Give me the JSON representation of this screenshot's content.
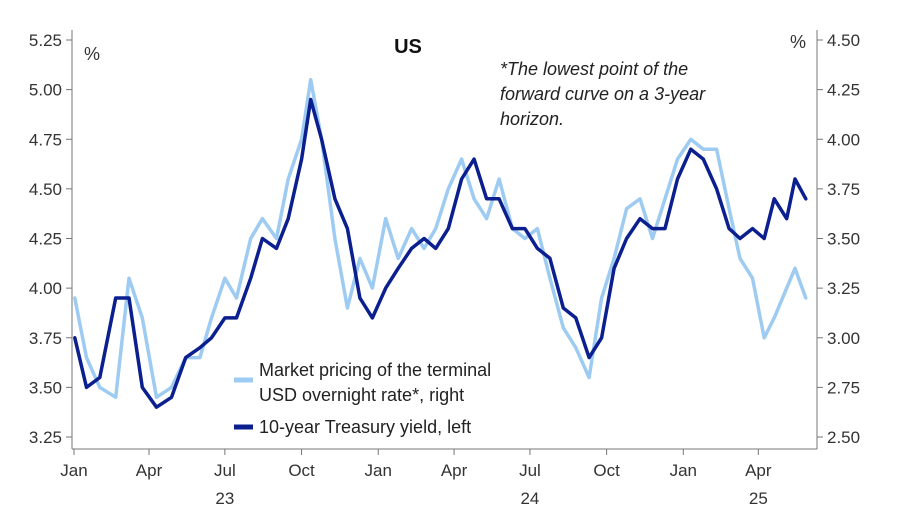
{
  "chart_data": {
    "type": "line",
    "title": "US",
    "annotation": [
      "*The lowest point of the",
      "forward curve on a 3-year",
      "horizon."
    ],
    "left_axis": {
      "unit": "%",
      "ylim": [
        3.2,
        5.3
      ],
      "ticks": [
        "3.25",
        "3.50",
        "3.75",
        "4.00",
        "4.25",
        "4.50",
        "4.75",
        "5.00",
        "5.25"
      ]
    },
    "right_axis": {
      "unit": "%",
      "ylim": [
        2.45,
        4.55
      ],
      "ticks": [
        "2.50",
        "2.75",
        "3.00",
        "3.25",
        "3.50",
        "3.75",
        "4.00",
        "4.25",
        "4.50"
      ]
    },
    "x_month_ticks": [
      "Jan",
      "Apr",
      "Jul",
      "Oct",
      "Jan",
      "Apr",
      "Jul",
      "Oct",
      "Jan",
      "Apr"
    ],
    "x_year_labels": [
      "23",
      "24",
      "25"
    ],
    "grid": false,
    "legend_position": "bottom-center",
    "series": [
      {
        "name": "Market pricing of the terminal USD overnight rate*, right",
        "legend_lines": [
          "Market pricing of the terminal",
          "USD overnight rate*, right"
        ],
        "axis": "right",
        "color": "#9ecbf2",
        "x": [
          "2023-01-02",
          "2023-01-16",
          "2023-02-01",
          "2023-02-20",
          "2023-03-08",
          "2023-03-24",
          "2023-04-10",
          "2023-04-28",
          "2023-05-15",
          "2023-06-01",
          "2023-06-15",
          "2023-07-01",
          "2023-07-15",
          "2023-08-01",
          "2023-08-15",
          "2023-09-01",
          "2023-09-15",
          "2023-10-01",
          "2023-10-12",
          "2023-10-25",
          "2023-11-10",
          "2023-11-25",
          "2023-12-10",
          "2023-12-25",
          "2024-01-10",
          "2024-01-25",
          "2024-02-10",
          "2024-02-25",
          "2024-03-10",
          "2024-03-25",
          "2024-04-10",
          "2024-04-25",
          "2024-05-10",
          "2024-05-25",
          "2024-06-10",
          "2024-06-25",
          "2024-07-10",
          "2024-07-25",
          "2024-08-10",
          "2024-08-25",
          "2024-09-10",
          "2024-09-25",
          "2024-10-10",
          "2024-10-25",
          "2024-11-10",
          "2024-11-25",
          "2024-12-10",
          "2024-12-25",
          "2025-01-10",
          "2025-01-25",
          "2025-02-10",
          "2025-02-25",
          "2025-03-10",
          "2025-03-25",
          "2025-04-08",
          "2025-04-20",
          "2025-05-05",
          "2025-05-15",
          "2025-05-28"
        ],
        "values": [
          3.2,
          2.9,
          2.75,
          2.7,
          3.3,
          3.1,
          2.7,
          2.75,
          2.9,
          2.9,
          3.1,
          3.3,
          3.2,
          3.5,
          3.6,
          3.5,
          3.8,
          4.0,
          4.3,
          4.0,
          3.5,
          3.15,
          3.4,
          3.25,
          3.6,
          3.4,
          3.55,
          3.45,
          3.55,
          3.75,
          3.9,
          3.7,
          3.6,
          3.8,
          3.55,
          3.5,
          3.55,
          3.3,
          3.05,
          2.95,
          2.8,
          3.2,
          3.4,
          3.65,
          3.7,
          3.5,
          3.7,
          3.9,
          4.0,
          3.95,
          3.95,
          3.65,
          3.4,
          3.3,
          3.0,
          3.1,
          3.25,
          3.35,
          3.2
        ]
      },
      {
        "name": "10-year Treasury yield, left",
        "legend_lines": [
          "10-year Treasury yield, left"
        ],
        "axis": "left",
        "color": "#0c1f8f",
        "x": [
          "2023-01-02",
          "2023-01-16",
          "2023-02-01",
          "2023-02-20",
          "2023-03-08",
          "2023-03-24",
          "2023-04-10",
          "2023-04-28",
          "2023-05-15",
          "2023-06-01",
          "2023-06-15",
          "2023-07-01",
          "2023-07-15",
          "2023-08-01",
          "2023-08-15",
          "2023-09-01",
          "2023-09-15",
          "2023-10-01",
          "2023-10-12",
          "2023-10-25",
          "2023-11-10",
          "2023-11-25",
          "2023-12-10",
          "2023-12-25",
          "2024-01-10",
          "2024-01-25",
          "2024-02-10",
          "2024-02-25",
          "2024-03-10",
          "2024-03-25",
          "2024-04-10",
          "2024-04-25",
          "2024-05-10",
          "2024-05-25",
          "2024-06-10",
          "2024-06-25",
          "2024-07-10",
          "2024-07-25",
          "2024-08-10",
          "2024-08-25",
          "2024-09-10",
          "2024-09-25",
          "2024-10-10",
          "2024-10-25",
          "2024-11-10",
          "2024-11-25",
          "2024-12-10",
          "2024-12-25",
          "2025-01-10",
          "2025-01-25",
          "2025-02-10",
          "2025-02-25",
          "2025-03-10",
          "2025-03-25",
          "2025-04-08",
          "2025-04-20",
          "2025-05-05",
          "2025-05-15",
          "2025-05-28"
        ],
        "values": [
          3.75,
          3.5,
          3.55,
          3.95,
          3.95,
          3.5,
          3.4,
          3.45,
          3.65,
          3.7,
          3.75,
          3.85,
          3.85,
          4.05,
          4.25,
          4.2,
          4.35,
          4.65,
          4.95,
          4.75,
          4.45,
          4.3,
          3.95,
          3.85,
          4.0,
          4.1,
          4.2,
          4.25,
          4.2,
          4.3,
          4.55,
          4.65,
          4.45,
          4.45,
          4.3,
          4.3,
          4.2,
          4.15,
          3.9,
          3.85,
          3.65,
          3.75,
          4.1,
          4.25,
          4.35,
          4.3,
          4.3,
          4.55,
          4.7,
          4.65,
          4.5,
          4.3,
          4.25,
          4.3,
          4.25,
          4.45,
          4.35,
          4.55,
          4.45
        ]
      }
    ]
  }
}
